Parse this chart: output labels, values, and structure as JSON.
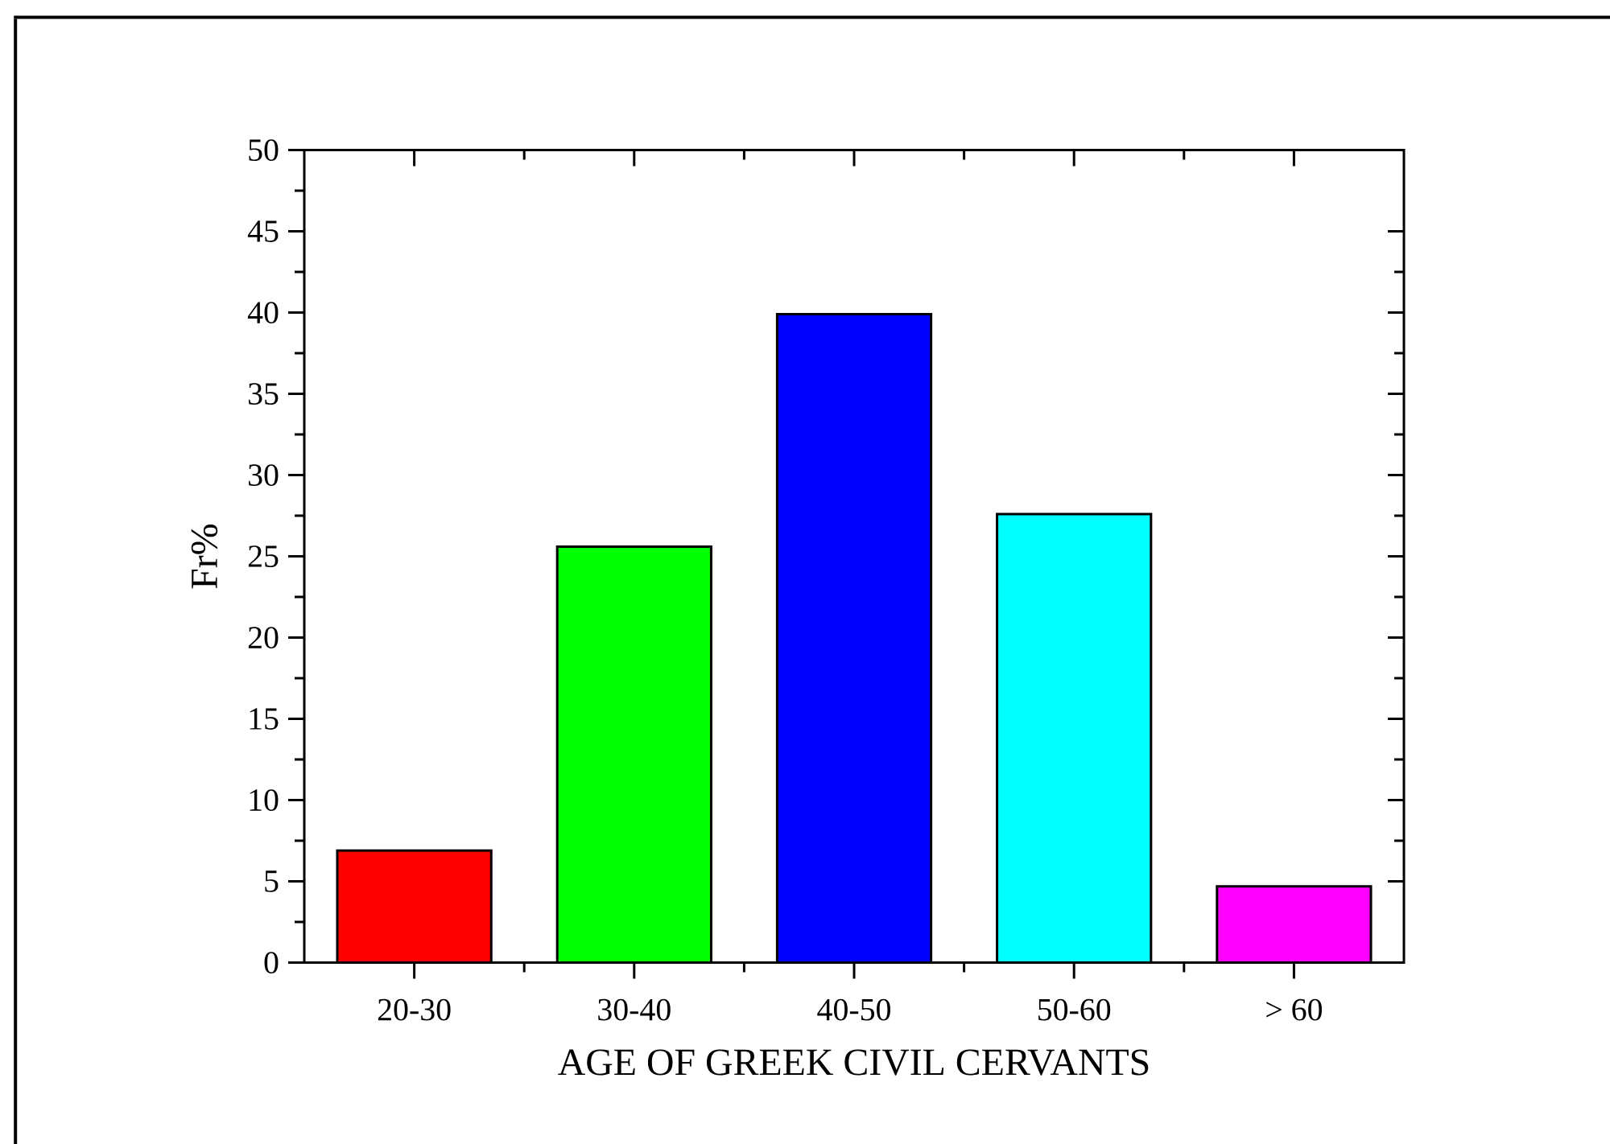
{
  "chart_data": {
    "type": "bar",
    "xlabel": "AGE OF GREEK CIVIL CERVANTS",
    "ylabel": "Fr%",
    "categories": [
      "20-30",
      "30-40",
      "40-50",
      "50-60",
      "> 60"
    ],
    "values": [
      6.9,
      25.6,
      39.9,
      27.6,
      4.7
    ],
    "colors": [
      "#ff0000",
      "#00ff00",
      "#0000ff",
      "#00ffff",
      "#ff00ff"
    ],
    "ylim": [
      0,
      50
    ],
    "yticks": [
      0,
      5,
      10,
      15,
      20,
      25,
      30,
      35,
      40,
      45,
      50
    ]
  }
}
